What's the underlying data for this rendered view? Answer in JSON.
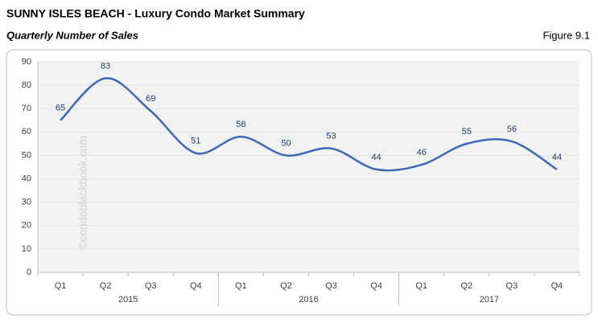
{
  "header": {
    "title": "SUNNY ISLES BEACH - Luxury Condo Market Summary",
    "subtitle": "Quarterly Number of Sales",
    "figure": "Figure 9.1"
  },
  "chart_data": {
    "type": "line",
    "categories": [
      "Q1",
      "Q2",
      "Q3",
      "Q4",
      "Q1",
      "Q2",
      "Q3",
      "Q4",
      "Q1",
      "Q2",
      "Q3",
      "Q4"
    ],
    "year_labels": [
      "2015",
      "2016",
      "2017"
    ],
    "values": [
      65,
      83,
      69,
      51,
      58,
      50,
      53,
      44,
      46,
      55,
      56,
      44
    ],
    "color": "#3d68b9",
    "ylim": [
      0,
      90
    ],
    "yticks": [
      0,
      10,
      20,
      30,
      40,
      50,
      60,
      70,
      80,
      90
    ],
    "grid": true,
    "smooth": true,
    "watermark": "©condoblackbook.com"
  }
}
